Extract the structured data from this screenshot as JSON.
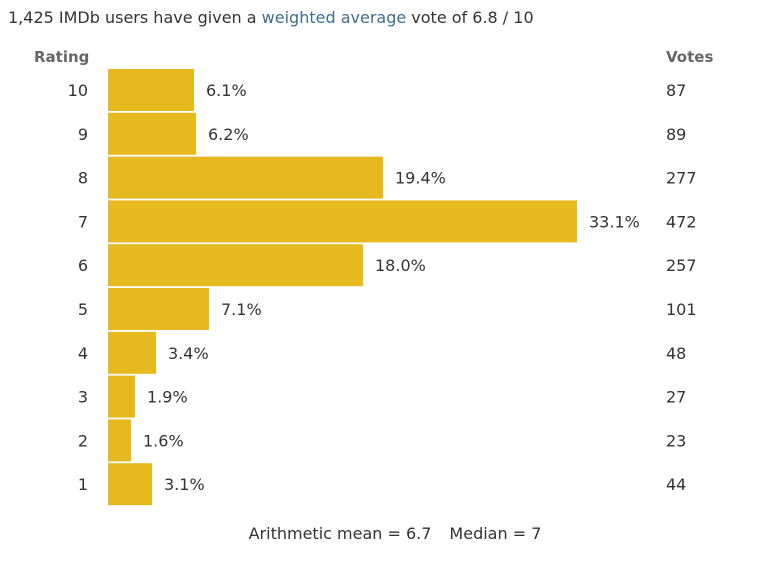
{
  "summary": {
    "prefix": "1,425 IMDb users have given a ",
    "link": "weighted average",
    "suffix": " vote of 6.8 / 10"
  },
  "headers": {
    "rating": "Rating",
    "votes": "Votes"
  },
  "colors": {
    "bar": "#e6b91e",
    "text": "#333333",
    "link": "#3d6e8e",
    "header": "#666666"
  },
  "footer": {
    "mean": "Arithmetic mean = 6.7",
    "median": "Median = 7"
  },
  "chart_data": {
    "type": "bar",
    "orientation": "horizontal",
    "categories": [
      "10",
      "9",
      "8",
      "7",
      "6",
      "5",
      "4",
      "3",
      "2",
      "1"
    ],
    "percent_labels": [
      "6.1%",
      "6.2%",
      "19.4%",
      "33.1%",
      "18.0%",
      "7.1%",
      "3.4%",
      "1.9%",
      "1.6%",
      "3.1%"
    ],
    "values": [
      6.1,
      6.2,
      19.4,
      33.1,
      18.0,
      7.1,
      3.4,
      1.9,
      1.6,
      3.1
    ],
    "votes": [
      "87",
      "89",
      "277",
      "472",
      "257",
      "101",
      "48",
      "27",
      "23",
      "44"
    ],
    "xlim": [
      0,
      33.1
    ],
    "grid": false,
    "legend": "none"
  }
}
